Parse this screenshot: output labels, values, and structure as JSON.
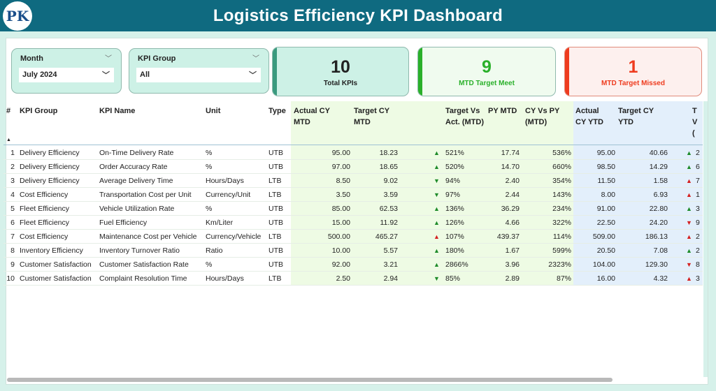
{
  "header": {
    "title": "Logistics Efficiency KPI Dashboard",
    "logo_text": "PK"
  },
  "slicers": [
    {
      "label": "Month",
      "value": "July 2024"
    },
    {
      "label": "KPI Group",
      "value": "All"
    }
  ],
  "cards": [
    {
      "value": "10",
      "caption": "Total KPIs",
      "color": "#3a9a7e"
    },
    {
      "value": "9",
      "caption": "MTD Target Meet",
      "color": "#2ab02a"
    },
    {
      "value": "1",
      "caption": "MTD Target Missed",
      "color": "#ee3b1e"
    }
  ],
  "table": {
    "headers": [
      "#",
      "KPI Group",
      "KPI Name",
      "Unit",
      "Type",
      "Actual CY MTD",
      "Target CY MTD",
      "Target Vs Act. (MTD)",
      "PY MTD",
      "CY Vs PY (MTD)",
      "Actual CY YTD",
      "Target CY YTD",
      "T V ("
    ],
    "sort_indicator": "▲",
    "rows": [
      [
        "1",
        "Delivery Efficiency",
        "On-Time Delivery Rate",
        "%",
        "UTB",
        "95.00",
        "18.23",
        "up-green",
        "521%",
        "17.74",
        "536%",
        "95.00",
        "40.66",
        "up-green",
        "2"
      ],
      [
        "2",
        "Delivery Efficiency",
        "Order Accuracy Rate",
        "%",
        "UTB",
        "97.00",
        "18.65",
        "up-green",
        "520%",
        "14.70",
        "660%",
        "98.50",
        "14.29",
        "up-green",
        "6"
      ],
      [
        "3",
        "Delivery Efficiency",
        "Average Delivery Time",
        "Hours/Days",
        "LTB",
        "8.50",
        "9.02",
        "down-green",
        "94%",
        "2.40",
        "354%",
        "11.50",
        "1.58",
        "up-red",
        "7"
      ],
      [
        "4",
        "Cost Efficiency",
        "Transportation Cost per Unit",
        "Currency/Unit",
        "LTB",
        "3.50",
        "3.59",
        "down-green",
        "97%",
        "2.44",
        "143%",
        "8.00",
        "6.93",
        "up-red",
        "1"
      ],
      [
        "5",
        "Fleet Efficiency",
        "Vehicle Utilization Rate",
        "%",
        "UTB",
        "85.00",
        "62.53",
        "up-green",
        "136%",
        "36.29",
        "234%",
        "91.00",
        "22.80",
        "up-green",
        "3"
      ],
      [
        "6",
        "Fleet Efficiency",
        "Fuel Efficiency",
        "Km/Liter",
        "UTB",
        "15.00",
        "11.92",
        "up-green",
        "126%",
        "4.66",
        "322%",
        "22.50",
        "24.20",
        "down-red",
        "9"
      ],
      [
        "7",
        "Cost Efficiency",
        "Maintenance Cost per Vehicle",
        "Currency/Vehicle",
        "LTB",
        "500.00",
        "465.27",
        "up-red",
        "107%",
        "439.37",
        "114%",
        "509.00",
        "186.13",
        "up-red",
        "2"
      ],
      [
        "8",
        "Inventory Efficiency",
        "Inventory Turnover Ratio",
        "Ratio",
        "UTB",
        "10.00",
        "5.57",
        "up-green",
        "180%",
        "1.67",
        "599%",
        "20.50",
        "7.08",
        "up-green",
        "2"
      ],
      [
        "9",
        "Customer Satisfaction",
        "Customer Satisfaction Rate",
        "%",
        "UTB",
        "92.00",
        "3.21",
        "up-green",
        "2866%",
        "3.96",
        "2323%",
        "104.00",
        "129.30",
        "down-red",
        "8"
      ],
      [
        "10",
        "Customer Satisfaction",
        "Complaint Resolution Time",
        "Hours/Days",
        "LTB",
        "2.50",
        "2.94",
        "down-green",
        "85%",
        "2.89",
        "87%",
        "16.00",
        "4.32",
        "up-red",
        "3"
      ]
    ]
  },
  "colors": {
    "header": "#0f6a80",
    "green": "#1e8b2a",
    "red": "#d42020"
  }
}
